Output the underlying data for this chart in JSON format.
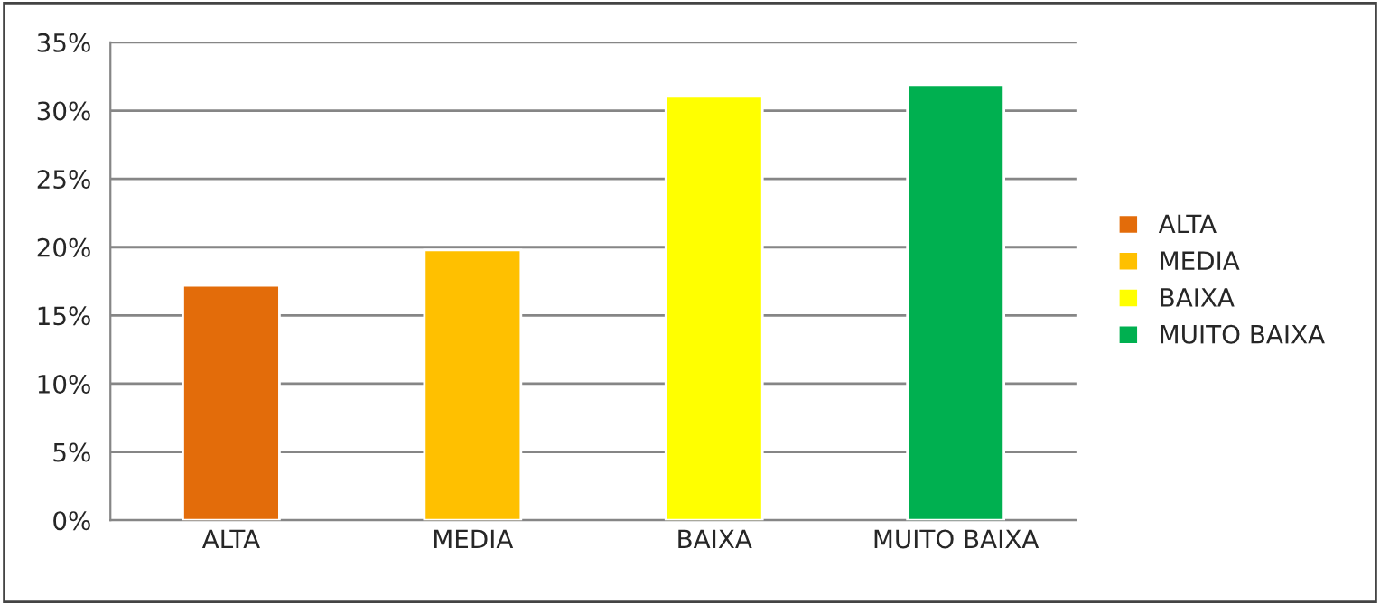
{
  "chart_data": {
    "type": "bar",
    "categories": [
      "ALTA",
      "MEDIA",
      "BAIXA",
      "MUITO BAIXA"
    ],
    "series": [
      {
        "name": "ALTA",
        "color": "#e36c0a",
        "values": [
          17.2,
          null,
          null,
          null
        ]
      },
      {
        "name": "MEDIA",
        "color": "#ffc000",
        "values": [
          null,
          19.8,
          null,
          null
        ]
      },
      {
        "name": "BAIXA",
        "color": "#ffff00",
        "values": [
          null,
          null,
          31.1,
          null
        ]
      },
      {
        "name": "MUITO BAIXA",
        "color": "#00b050",
        "values": [
          null,
          null,
          null,
          31.9
        ]
      }
    ],
    "stacked": true,
    "ylim": [
      0,
      35
    ],
    "yticks": [
      {
        "value": 0,
        "label": "0%"
      },
      {
        "value": 5,
        "label": "5%"
      },
      {
        "value": 10,
        "label": "10%"
      },
      {
        "value": 15,
        "label": "15%"
      },
      {
        "value": 20,
        "label": "20%"
      },
      {
        "value": 25,
        "label": "25%"
      },
      {
        "value": 30,
        "label": "30%"
      },
      {
        "value": 35,
        "label": "35%"
      }
    ],
    "grid": "y",
    "legend": "right"
  }
}
